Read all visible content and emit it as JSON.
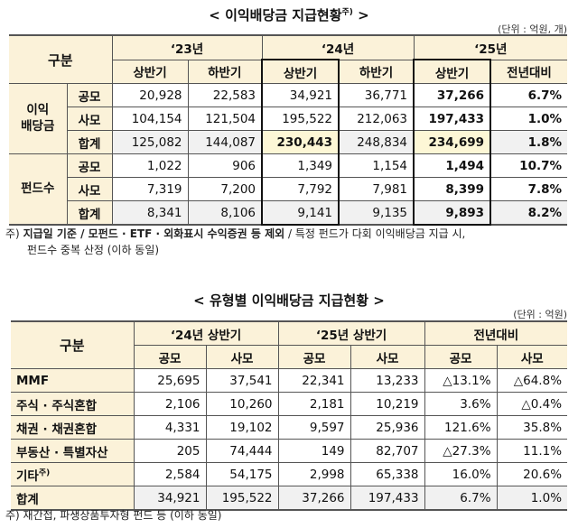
{
  "table1": {
    "title": "< 이익배당금 지급현황",
    "title_sup": "주)",
    "title_end": " >",
    "unit": "(단위 : 억원, 개)",
    "header": {
      "category": "구분",
      "years": [
        "‘23년",
        "‘24년",
        "‘25년"
      ],
      "sub": [
        "상반기",
        "하반기",
        "상반기",
        "하반기",
        "상반기",
        "전년대비"
      ]
    },
    "groups": [
      {
        "label": "이익\n배당금",
        "rows": [
          {
            "label": "공모",
            "values": [
              "20,928",
              "22,583",
              "34,921",
              "36,771",
              "37,266",
              "6.7%"
            ]
          },
          {
            "label": "사모",
            "values": [
              "104,154",
              "121,504",
              "195,522",
              "212,063",
              "197,433",
              "1.0%"
            ]
          },
          {
            "label": "합계",
            "values": [
              "125,082",
              "144,087",
              "230,443",
              "248,834",
              "234,699",
              "1.8%"
            ]
          }
        ]
      },
      {
        "label": "펀드수",
        "rows": [
          {
            "label": "공모",
            "values": [
              "1,022",
              "906",
              "1,349",
              "1,154",
              "1,494",
              "10.7%"
            ]
          },
          {
            "label": "사모",
            "values": [
              "7,319",
              "7,200",
              "7,792",
              "7,981",
              "8,399",
              "7.8%"
            ]
          },
          {
            "label": "합계",
            "values": [
              "8,341",
              "8,106",
              "9,141",
              "9,135",
              "9,893",
              "8.2%"
            ]
          }
        ]
      }
    ],
    "note_prefix": "주)",
    "note_bold": "지급일 기준 / 모펀드 · ETF · 외화표시 수익증권 등 제외",
    "note_rest": " / 특정 펀드가 다회 이익배당금 지급 시,",
    "note_line2": "펀드수 중복 산정 (이하 동일)"
  },
  "table2": {
    "title": "< 유형별 이익배당금 지급현황 >",
    "unit": "(단위 : 억원)",
    "header": {
      "category": "구분",
      "groups": [
        "‘24년 상반기",
        "‘25년 상반기",
        "전년대비"
      ],
      "sub": [
        "공모",
        "사모",
        "공모",
        "사모",
        "공모",
        "사모"
      ]
    },
    "rows": [
      {
        "label": "MMF",
        "values": [
          "25,695",
          "37,541",
          "22,341",
          "13,233",
          "△13.1%",
          "△64.8%"
        ]
      },
      {
        "label": "주식 · 주식혼합",
        "values": [
          "2,106",
          "10,260",
          "2,181",
          "10,219",
          "3.6%",
          "△0.4%"
        ]
      },
      {
        "label": "채권 · 채권혼합",
        "values": [
          "4,331",
          "19,102",
          "9,597",
          "25,936",
          "121.6%",
          "35.8%"
        ]
      },
      {
        "label": "부동산 · 특별자산",
        "values": [
          "205",
          "74,444",
          "149",
          "82,707",
          "△27.3%",
          "11.1%"
        ]
      },
      {
        "label": "기타",
        "label_sup": "주)",
        "values": [
          "2,584",
          "54,175",
          "2,998",
          "65,338",
          "16.0%",
          "20.6%"
        ]
      },
      {
        "label": "합계",
        "values": [
          "34,921",
          "195,522",
          "37,266",
          "197,433",
          "6.7%",
          "1.0%"
        ]
      }
    ],
    "note": "주) 재간접, 파생상품투자형 펀드 등 (이하 동일)"
  }
}
